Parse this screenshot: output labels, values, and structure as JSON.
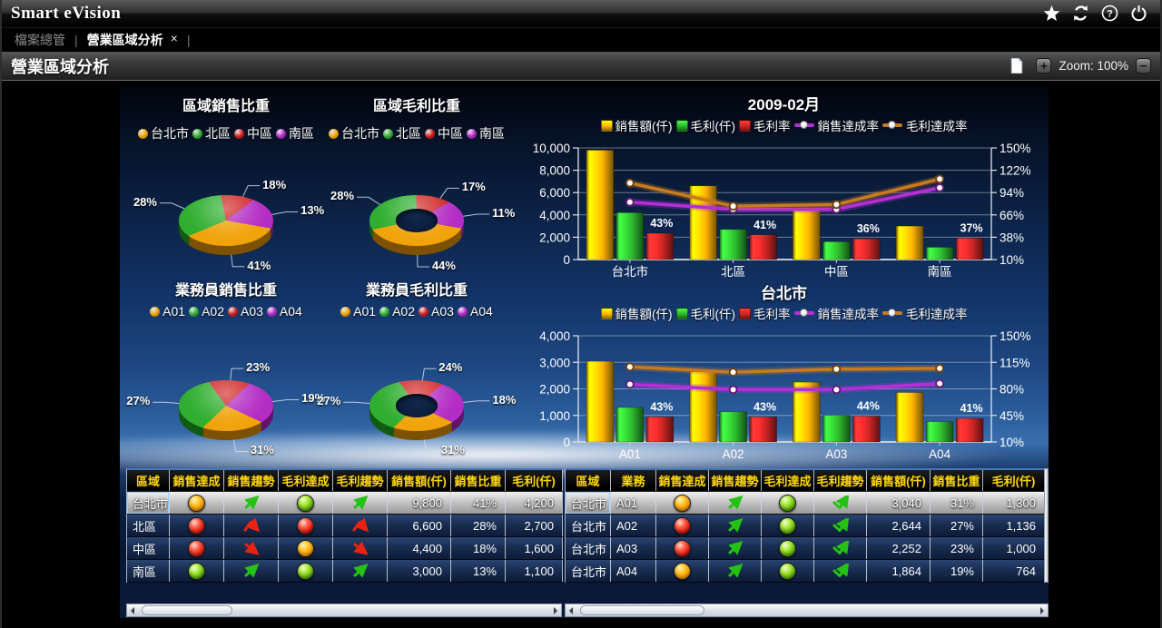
{
  "topbar": {
    "title": "Smart eVision",
    "icons": [
      "favorite-star",
      "refresh",
      "help",
      "power"
    ]
  },
  "tabbar": {
    "items": [
      {
        "label": "檔案總管",
        "active": false
      },
      {
        "label": "營業區域分析",
        "active": true
      }
    ],
    "close_glyph": "×"
  },
  "pagebar": {
    "title": "營業區域分析",
    "zoom_label": "Zoom: 100%",
    "zoom_in_glyph": "+",
    "zoom_out_glyph": "−"
  },
  "colors": {
    "accent_blue": "#4678b9",
    "header_yellow": "#ffd903",
    "trend_green": "#25c115",
    "trend_red": "#e82312"
  },
  "chart_data": [
    {
      "type": "pie",
      "donut": false,
      "title": "區域銷售比重",
      "categories": [
        "台北市",
        "北區",
        "中區",
        "南區"
      ],
      "values": [
        41,
        28,
        18,
        13
      ],
      "labels": [
        "41%",
        "28%",
        "18%",
        "13%"
      ],
      "colors": [
        "#f0a30a",
        "#2fae2f",
        "#cf2020",
        "#b32cc4"
      ],
      "start_angle": 100
    },
    {
      "type": "pie",
      "donut": true,
      "title": "區域毛利比重",
      "categories": [
        "台北市",
        "北區",
        "中區",
        "南區"
      ],
      "values": [
        44,
        28,
        17,
        11
      ],
      "labels": [
        "44%",
        "28%",
        "17%",
        "11%"
      ],
      "colors": [
        "#f0a30a",
        "#2fae2f",
        "#cf2020",
        "#b32cc4"
      ],
      "start_angle": 100
    },
    {
      "type": "pie",
      "donut": false,
      "title": "業務員銷售比重",
      "categories": [
        "A01",
        "A02",
        "A03",
        "A04"
      ],
      "values": [
        31,
        27,
        23,
        19
      ],
      "labels": [
        "31%",
        "27%",
        "23%",
        "19%"
      ],
      "colors": [
        "#f0a30a",
        "#2fae2f",
        "#cf2020",
        "#b32cc4"
      ],
      "start_angle": 115
    },
    {
      "type": "pie",
      "donut": true,
      "title": "業務員毛利比重",
      "categories": [
        "A01",
        "A02",
        "A03",
        "A04"
      ],
      "values": [
        31,
        27,
        24,
        18
      ],
      "labels": [
        "31%",
        "27%",
        "24%",
        "18%"
      ],
      "colors": [
        "#f0a30a",
        "#2fae2f",
        "#cf2020",
        "#b32cc4"
      ],
      "start_angle": 115
    },
    {
      "type": "combo",
      "title": "2009-02月",
      "categories": [
        "台北市",
        "北區",
        "中區",
        "南區"
      ],
      "left_axis": {
        "min": 0,
        "max": 10000,
        "ticks": [
          {
            "label": "10,000",
            "v": 10000
          },
          {
            "label": "8,000",
            "v": 8000
          },
          {
            "label": "6,000",
            "v": 6000
          },
          {
            "label": "4,000",
            "v": 4000
          },
          {
            "label": "2,000",
            "v": 2000
          },
          {
            "label": "0",
            "v": 0
          }
        ]
      },
      "right_axis": {
        "min": 10,
        "max": 150,
        "ticks": [
          {
            "label": "150%",
            "v": 150
          },
          {
            "label": "122%",
            "v": 122
          },
          {
            "label": "94%",
            "v": 94
          },
          {
            "label": "66%",
            "v": 66
          },
          {
            "label": "38%",
            "v": 38
          },
          {
            "label": "10%",
            "v": 10
          }
        ]
      },
      "series": [
        {
          "name": "銷售額(仟)",
          "type": "bar",
          "axis": "left",
          "color": "#ffb400",
          "values": [
            9800,
            6600,
            4400,
            3000
          ]
        },
        {
          "name": "毛利(仟)",
          "type": "bar",
          "axis": "left",
          "color": "#2db52d",
          "values": [
            4200,
            2700,
            1600,
            1100
          ]
        },
        {
          "name": "毛利率",
          "type": "bar",
          "axis": "right",
          "color": "#cc2525",
          "values": [
            43,
            41,
            36,
            37
          ],
          "value_labels": [
            "43%",
            "41%",
            "36%",
            "37%"
          ]
        },
        {
          "name": "銷售達成率",
          "type": "line",
          "axis": "right",
          "color": "#b42fd6",
          "values": [
            82,
            73,
            73,
            100
          ]
        },
        {
          "name": "毛利達成率",
          "type": "line",
          "axis": "right",
          "color": "#c87a1e",
          "values": [
            106,
            77,
            79,
            111
          ]
        }
      ]
    },
    {
      "type": "combo",
      "title": "台北市",
      "categories": [
        "A01",
        "A02",
        "A03",
        "A04"
      ],
      "left_axis": {
        "min": 0,
        "max": 4000,
        "ticks": [
          {
            "label": "4,000",
            "v": 4000
          },
          {
            "label": "3,000",
            "v": 3000
          },
          {
            "label": "2,000",
            "v": 2000
          },
          {
            "label": "1,000",
            "v": 1000
          },
          {
            "label": "0",
            "v": 0
          }
        ]
      },
      "right_axis": {
        "min": 10,
        "max": 150,
        "ticks": [
          {
            "label": "150%",
            "v": 150
          },
          {
            "label": "115%",
            "v": 115
          },
          {
            "label": "80%",
            "v": 80
          },
          {
            "label": "45%",
            "v": 45
          },
          {
            "label": "10%",
            "v": 10
          }
        ]
      },
      "series": [
        {
          "name": "銷售額(仟)",
          "type": "bar",
          "axis": "left",
          "color": "#ffb400",
          "values": [
            3040,
            2644,
            2252,
            1864
          ]
        },
        {
          "name": "毛利(仟)",
          "type": "bar",
          "axis": "left",
          "color": "#2db52d",
          "values": [
            1300,
            1136,
            1000,
            764
          ]
        },
        {
          "name": "毛利率",
          "type": "bar",
          "axis": "right",
          "color": "#cc2525",
          "values": [
            43,
            43,
            44,
            41
          ],
          "value_labels": [
            "43%",
            "43%",
            "44%",
            "41%"
          ]
        },
        {
          "name": "銷售達成率",
          "type": "line",
          "axis": "right",
          "color": "#b42fd6",
          "values": [
            86,
            79,
            79,
            87
          ]
        },
        {
          "name": "毛利達成率",
          "type": "line",
          "axis": "right",
          "color": "#c87a1e",
          "values": [
            109,
            102,
            106,
            107
          ]
        }
      ]
    }
  ],
  "grid_left": {
    "headers": [
      "區域",
      "銷售達成",
      "銷售趨勢",
      "毛利達成",
      "毛利趨勢",
      "銷售額(仟)",
      "銷售比重",
      "毛利(仟)"
    ],
    "rows": [
      {
        "selected": true,
        "cells": [
          {
            "t": "text",
            "v": "台北市"
          },
          {
            "t": "light",
            "v": "orange"
          },
          {
            "t": "trend",
            "v": "up"
          },
          {
            "t": "light",
            "v": "green"
          },
          {
            "t": "trend",
            "v": "up"
          },
          {
            "t": "num",
            "v": "9,800"
          },
          {
            "t": "num",
            "v": "41%"
          },
          {
            "t": "num",
            "v": "4,200"
          }
        ]
      },
      {
        "selected": false,
        "cells": [
          {
            "t": "text",
            "v": "北區"
          },
          {
            "t": "light",
            "v": "red"
          },
          {
            "t": "trend",
            "v": "peak"
          },
          {
            "t": "light",
            "v": "red"
          },
          {
            "t": "trend",
            "v": "peak"
          },
          {
            "t": "num",
            "v": "6,600"
          },
          {
            "t": "num",
            "v": "28%"
          },
          {
            "t": "num",
            "v": "2,700"
          }
        ]
      },
      {
        "selected": false,
        "cells": [
          {
            "t": "text",
            "v": "中區"
          },
          {
            "t": "light",
            "v": "red"
          },
          {
            "t": "trend",
            "v": "down"
          },
          {
            "t": "light",
            "v": "orange"
          },
          {
            "t": "trend",
            "v": "down"
          },
          {
            "t": "num",
            "v": "4,400"
          },
          {
            "t": "num",
            "v": "18%"
          },
          {
            "t": "num",
            "v": "1,600"
          }
        ]
      },
      {
        "selected": false,
        "cells": [
          {
            "t": "text",
            "v": "南區"
          },
          {
            "t": "light",
            "v": "green"
          },
          {
            "t": "trend",
            "v": "up"
          },
          {
            "t": "light",
            "v": "green"
          },
          {
            "t": "trend",
            "v": "up"
          },
          {
            "t": "num",
            "v": "3,000"
          },
          {
            "t": "num",
            "v": "13%"
          },
          {
            "t": "num",
            "v": "1,100"
          }
        ]
      }
    ]
  },
  "grid_right": {
    "headers": [
      "區域",
      "業務",
      "銷售達成",
      "銷售趨勢",
      "毛利達成",
      "毛利趨勢",
      "銷售額(仟)",
      "銷售比重",
      "毛利(仟)"
    ],
    "rows": [
      {
        "selected": true,
        "cells": [
          {
            "t": "text",
            "v": "台北市"
          },
          {
            "t": "text",
            "v": "A01"
          },
          {
            "t": "light",
            "v": "orange"
          },
          {
            "t": "trend",
            "v": "up"
          },
          {
            "t": "light",
            "v": "green"
          },
          {
            "t": "trend",
            "v": "check"
          },
          {
            "t": "num",
            "v": "3,040"
          },
          {
            "t": "num",
            "v": "31%"
          },
          {
            "t": "num",
            "v": "1,300"
          }
        ]
      },
      {
        "selected": false,
        "cells": [
          {
            "t": "text",
            "v": "台北市"
          },
          {
            "t": "text",
            "v": "A02"
          },
          {
            "t": "light",
            "v": "red"
          },
          {
            "t": "trend",
            "v": "up"
          },
          {
            "t": "light",
            "v": "green"
          },
          {
            "t": "trend",
            "v": "check"
          },
          {
            "t": "num",
            "v": "2,644"
          },
          {
            "t": "num",
            "v": "27%"
          },
          {
            "t": "num",
            "v": "1,136"
          }
        ]
      },
      {
        "selected": false,
        "cells": [
          {
            "t": "text",
            "v": "台北市"
          },
          {
            "t": "text",
            "v": "A03"
          },
          {
            "t": "light",
            "v": "red"
          },
          {
            "t": "trend",
            "v": "up"
          },
          {
            "t": "light",
            "v": "green"
          },
          {
            "t": "trend",
            "v": "check"
          },
          {
            "t": "num",
            "v": "2,252"
          },
          {
            "t": "num",
            "v": "23%"
          },
          {
            "t": "num",
            "v": "1,000"
          }
        ]
      },
      {
        "selected": false,
        "cells": [
          {
            "t": "text",
            "v": "台北市"
          },
          {
            "t": "text",
            "v": "A04"
          },
          {
            "t": "light",
            "v": "orange"
          },
          {
            "t": "trend",
            "v": "up"
          },
          {
            "t": "light",
            "v": "green"
          },
          {
            "t": "trend",
            "v": "check"
          },
          {
            "t": "num",
            "v": "1,864"
          },
          {
            "t": "num",
            "v": "19%"
          },
          {
            "t": "num",
            "v": "764"
          }
        ]
      }
    ]
  }
}
